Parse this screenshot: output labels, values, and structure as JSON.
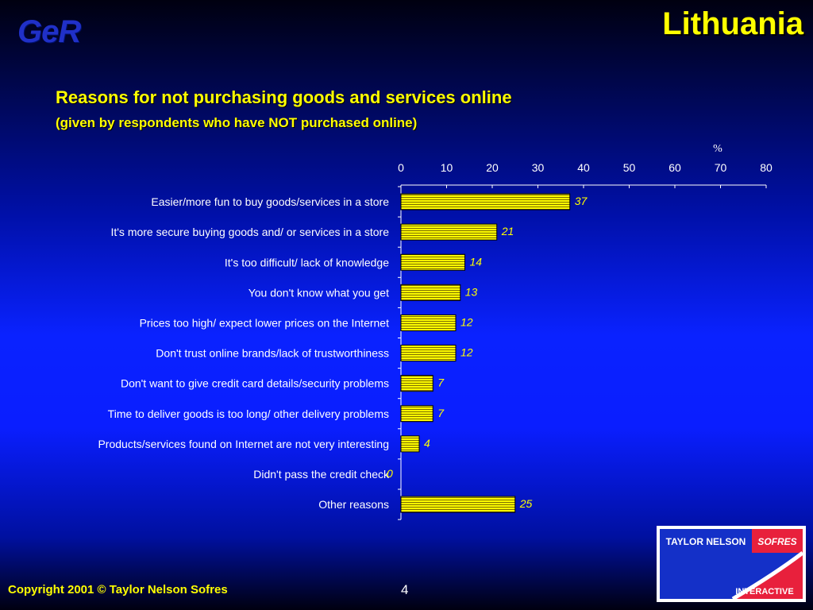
{
  "header": {
    "brand": "GeR",
    "country": "Lithuania"
  },
  "chart_data": {
    "type": "bar",
    "orientation": "horizontal",
    "title": "Reasons for not purchasing goods and services online",
    "subtitle": "(given by respondents who have NOT purchased online)",
    "unit_label": "%",
    "xlim": [
      0,
      80
    ],
    "x_ticks": [
      "0",
      "10",
      "20",
      "30",
      "40",
      "50",
      "60",
      "70",
      "80"
    ],
    "categories": [
      "Easier/more fun to buy goods/services in a store",
      "It's more secure buying goods and/ or services in a store",
      "It's too difficult/ lack of knowledge",
      "You don't know what you get",
      "Prices too high/ expect lower prices on the Internet",
      "Don't trust online brands/lack of trustworthiness",
      "Don't want to give credit card details/security problems",
      "Time to deliver goods is too long/ other delivery problems",
      "Products/services found on Internet are not very interesting",
      "Didn't pass the credit check",
      "Other reasons"
    ],
    "values": [
      37,
      21,
      14,
      13,
      12,
      12,
      7,
      7,
      4,
      0,
      25
    ],
    "value_labels": [
      "37",
      "21",
      "14",
      "13",
      "12",
      "12",
      "7",
      "7",
      "4",
      "0",
      "25"
    ],
    "legend": "none",
    "grid": false,
    "bar_color": "#ffff00"
  },
  "footer": {
    "copyright": "Copyright 2001 © Taylor Nelson Sofres",
    "page_number": "4"
  },
  "logo": {
    "line1a": "TAYLOR NELSON",
    "line1b": "SOFRES",
    "line2": "INTERACTIVE"
  }
}
